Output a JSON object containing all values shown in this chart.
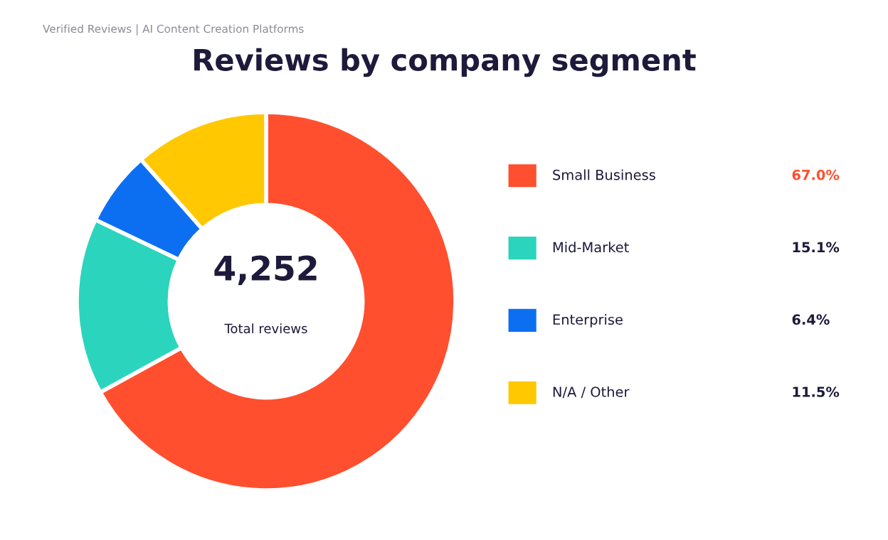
{
  "chart_data": {
    "type": "donut",
    "title": "Reviews by company segment",
    "categories": [
      "Small Business",
      "Mid-Market",
      "Enterprise",
      "N/A / Other"
    ],
    "values": [
      67.0,
      15.1,
      6.4,
      11.5
    ],
    "colors": [
      "#ff4f2e",
      "#2bd4bd",
      "#0c6ff2",
      "#ffc800"
    ],
    "value_labels": [
      "67.0%",
      "15.1%",
      "6.4%",
      "11.5%"
    ],
    "legend": "right",
    "annotations": [
      "Verified Reviews | AI Content Creation Platforms",
      "4,252",
      "Total reviews"
    ]
  }
}
